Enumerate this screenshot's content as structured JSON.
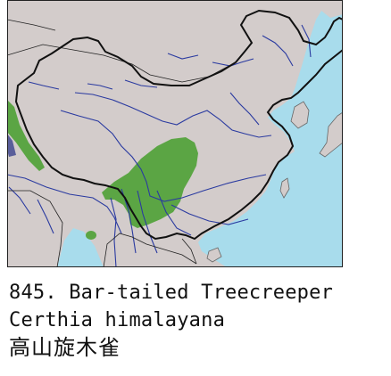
{
  "caption": {
    "number_title": "845. Bar-tailed Treecreeper",
    "scientific_name": "Certhia himalayana",
    "chinese_name": "高山旋木雀"
  },
  "map": {
    "colors": {
      "land": "#d3cccb",
      "sea": "#a8dcec",
      "range": "#5ba544",
      "range_alt": "#5a5e9a",
      "river": "#2a3aa0",
      "border": "#111111"
    },
    "distribution": "Himalayas and south-western China (Yunnan, Sichuan, southern Gansu, Shaanxi)"
  }
}
